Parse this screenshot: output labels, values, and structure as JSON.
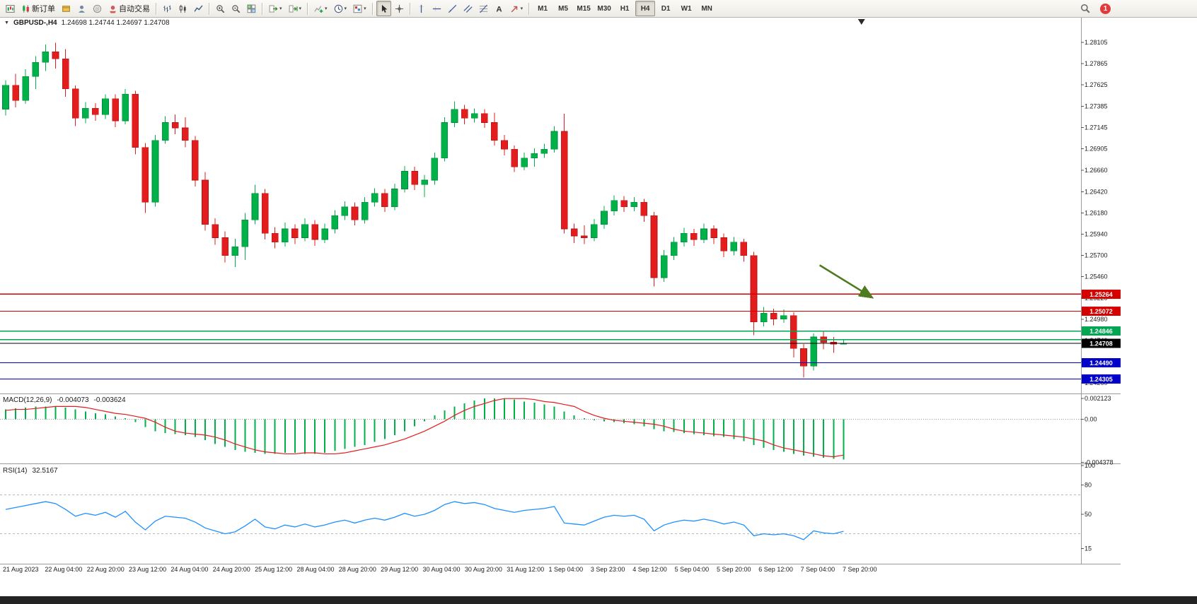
{
  "toolbar": {
    "notification_count": "1",
    "groups": [
      {
        "name": "standard",
        "items": [
          {
            "name": "new-chart-button",
            "icon": "new-chart"
          },
          {
            "name": "new-order-button",
            "icon": "new-order",
            "label": "新订单"
          },
          {
            "name": "metaeditor-button",
            "icon": "metaeditor"
          },
          {
            "name": "mql5-community-button",
            "icon": "community"
          },
          {
            "name": "web-terminal-button",
            "icon": "web"
          },
          {
            "name": "autotrading-button",
            "icon": "autotrading",
            "label": "自动交易"
          }
        ]
      },
      {
        "name": "chart-types",
        "items": [
          {
            "name": "bar-chart-button",
            "icon": "bars"
          },
          {
            "name": "candlestick-chart-button",
            "icon": "candles"
          },
          {
            "name": "line-chart-button",
            "icon": "linechart"
          }
        ]
      },
      {
        "name": "zoom",
        "items": [
          {
            "name": "zoom-in-button",
            "icon": "zoom-in"
          },
          {
            "name": "zoom-out-button",
            "icon": "zoom-out"
          },
          {
            "name": "tile-windows-button",
            "icon": "tile"
          }
        ]
      },
      {
        "name": "scroll",
        "items": [
          {
            "name": "auto-scroll-button",
            "icon": "autoscroll",
            "caret": true
          },
          {
            "name": "chart-shift-button",
            "icon": "shift",
            "caret": true
          }
        ]
      },
      {
        "name": "insert",
        "items": [
          {
            "name": "indicators-button",
            "icon": "indicators",
            "caret": true
          },
          {
            "name": "periods-button",
            "icon": "periods",
            "caret": true
          },
          {
            "name": "templates-button",
            "icon": "templates",
            "caret": true
          }
        ]
      },
      {
        "name": "pointer",
        "items": [
          {
            "name": "cursor-button",
            "icon": "cursor",
            "active": true
          },
          {
            "name": "crosshair-button",
            "icon": "crosshair"
          }
        ]
      },
      {
        "name": "objects",
        "items": [
          {
            "name": "vertical-line-button",
            "icon": "vline"
          },
          {
            "name": "horizontal-line-button",
            "icon": "hline"
          },
          {
            "name": "trendline-button",
            "icon": "tline"
          },
          {
            "name": "equidistant-channel-button",
            "icon": "channel"
          },
          {
            "name": "fibonacci-button",
            "icon": "fibo"
          },
          {
            "name": "text-button",
            "icon": "text"
          },
          {
            "name": "arrows-button",
            "icon": "arrows",
            "caret": true
          }
        ]
      }
    ],
    "timeframes": {
      "items": [
        "M1",
        "M5",
        "M15",
        "M30",
        "H1",
        "H4",
        "D1",
        "W1",
        "MN"
      ],
      "active": "H4"
    }
  },
  "chart": {
    "symbol_period": "GBPUSD-,H4",
    "ohlc_text": "1.24698 1.24744 1.24697 1.24708",
    "dropdown_glyph": "▼",
    "colors": {
      "up": "#00b14a",
      "up_edge": "#008a39",
      "down": "#e31d1d",
      "down_edge": "#b31414",
      "macd": "#00b14a",
      "signal": "#e31d1d",
      "rsi": "#1e90ff",
      "axis_text": "#1a1a1a"
    },
    "price_axis_ticks": [
      "1.28105",
      "1.27865",
      "1.27625",
      "1.27385",
      "1.27145",
      "1.26905",
      "1.26660",
      "1.26420",
      "1.26180",
      "1.25940",
      "1.25700",
      "1.25460",
      "1.25220",
      "1.24980",
      "1.24740",
      "1.24500",
      "1.24260"
    ],
    "levels": [
      {
        "price": 1.25264,
        "label": "1.25264",
        "color": "#d40000",
        "labeled": true
      },
      {
        "price": 1.25072,
        "label": "1.25072",
        "color": "#d40000",
        "labeled": true
      },
      {
        "price": 1.24846,
        "label": "1.24846",
        "color": "#00a651",
        "labeled": true
      },
      {
        "price": 1.2475,
        "label": "",
        "color": "#00a651",
        "labeled": false
      },
      {
        "price": 1.24708,
        "label": "1.24708",
        "color": "#000000",
        "labeled": true,
        "current": true
      },
      {
        "price": 1.2449,
        "label": "1.24490",
        "color": "#0000c8",
        "labeled": true
      },
      {
        "price": 1.24305,
        "label": "1.24305",
        "color": "#0000c8",
        "labeled": true
      }
    ],
    "arrow_annotation": {
      "from_index": 81.6,
      "from_price": 1.2559,
      "to_index": 86.8,
      "to_price": 1.2523,
      "color": "#4e7b20"
    },
    "shift_marker_index": 85.8
  },
  "indicators": {
    "macd": {
      "label": "MACD(12,26,9)",
      "value_main": "-0.004073",
      "value_signal": "-0.003624",
      "axis_ticks": [
        "0.002123",
        "0.00",
        "-0.004378"
      ]
    },
    "rsi": {
      "label": "RSI(14)",
      "value": "32.5167",
      "axis_ticks": [
        "100",
        "80",
        "50",
        "15"
      ],
      "levels": [
        70,
        30
      ]
    }
  },
  "chart_data": {
    "type": "candlestick",
    "title": "GBPUSD- H4",
    "symbol": "GBPUSD-",
    "timeframe": "H4",
    "ylim": [
      1.2415,
      1.2836
    ],
    "macd_ylim": [
      -0.0044,
      0.0024
    ],
    "rsi_ylim": [
      0,
      100
    ],
    "x_labels": [
      "21 Aug 2023",
      "22 Aug 04:00",
      "22 Aug 20:00",
      "23 Aug 12:00",
      "24 Aug 04:00",
      "24 Aug 20:00",
      "25 Aug 12:00",
      "28 Aug 04:00",
      "28 Aug 20:00",
      "29 Aug 12:00",
      "30 Aug 04:00",
      "30 Aug 20:00",
      "31 Aug 12:00",
      "1 Sep 04:00",
      "3 Sep 23:00",
      "4 Sep 12:00",
      "5 Sep 04:00",
      "5 Sep 20:00",
      "6 Sep 12:00",
      "7 Sep 04:00",
      "7 Sep 20:00"
    ],
    "candles": [
      [
        1.2735,
        1.2768,
        1.2728,
        1.2762
      ],
      [
        1.2762,
        1.2775,
        1.2737,
        1.2745
      ],
      [
        1.2745,
        1.278,
        1.2741,
        1.2772
      ],
      [
        1.2772,
        1.2795,
        1.2758,
        1.2788
      ],
      [
        1.2788,
        1.2808,
        1.2778,
        1.28
      ],
      [
        1.28,
        1.281,
        1.2781,
        1.2792
      ],
      [
        1.2792,
        1.2803,
        1.2749,
        1.2758
      ],
      [
        1.2758,
        1.2762,
        1.2716,
        1.2725
      ],
      [
        1.2725,
        1.2743,
        1.2719,
        1.2736
      ],
      [
        1.2736,
        1.2742,
        1.2722,
        1.2729
      ],
      [
        1.2729,
        1.2752,
        1.2724,
        1.2747
      ],
      [
        1.2747,
        1.2752,
        1.2715,
        1.2722
      ],
      [
        1.2722,
        1.2758,
        1.2718,
        1.2752
      ],
      [
        1.2752,
        1.2756,
        1.2684,
        1.2692
      ],
      [
        1.2692,
        1.2697,
        1.2618,
        1.263
      ],
      [
        1.263,
        1.2706,
        1.2625,
        1.27
      ],
      [
        1.27,
        1.2727,
        1.2696,
        1.272
      ],
      [
        1.272,
        1.2729,
        1.2707,
        1.2714
      ],
      [
        1.2714,
        1.2726,
        1.2692,
        1.27
      ],
      [
        1.27,
        1.2705,
        1.2648,
        1.2655
      ],
      [
        1.2655,
        1.2664,
        1.2598,
        1.2605
      ],
      [
        1.2605,
        1.2612,
        1.2582,
        1.259
      ],
      [
        1.259,
        1.2597,
        1.2562,
        1.257
      ],
      [
        1.257,
        1.2589,
        1.2557,
        1.258
      ],
      [
        1.258,
        1.2618,
        1.2565,
        1.261
      ],
      [
        1.261,
        1.265,
        1.2605,
        1.264
      ],
      [
        1.264,
        1.2645,
        1.2588,
        1.2595
      ],
      [
        1.2595,
        1.2602,
        1.2578,
        1.2585
      ],
      [
        1.2585,
        1.2607,
        1.258,
        1.26
      ],
      [
        1.26,
        1.2605,
        1.2583,
        1.259
      ],
      [
        1.259,
        1.2612,
        1.2586,
        1.2605
      ],
      [
        1.2605,
        1.261,
        1.2581,
        1.2588
      ],
      [
        1.2588,
        1.2606,
        1.2584,
        1.26
      ],
      [
        1.26,
        1.2621,
        1.2595,
        1.2615
      ],
      [
        1.2615,
        1.2631,
        1.261,
        1.2625
      ],
      [
        1.2625,
        1.263,
        1.2604,
        1.261
      ],
      [
        1.261,
        1.2636,
        1.2606,
        1.263
      ],
      [
        1.263,
        1.2646,
        1.2625,
        1.264
      ],
      [
        1.264,
        1.2645,
        1.2619,
        1.2625
      ],
      [
        1.2625,
        1.2651,
        1.2621,
        1.2645
      ],
      [
        1.2645,
        1.2671,
        1.2641,
        1.2665
      ],
      [
        1.2665,
        1.267,
        1.2644,
        1.265
      ],
      [
        1.265,
        1.2661,
        1.2636,
        1.2655
      ],
      [
        1.2655,
        1.2686,
        1.265,
        1.268
      ],
      [
        1.268,
        1.2726,
        1.2676,
        1.272
      ],
      [
        1.272,
        1.2744,
        1.2715,
        1.2735
      ],
      [
        1.2735,
        1.274,
        1.2718,
        1.2725
      ],
      [
        1.2725,
        1.2736,
        1.272,
        1.273
      ],
      [
        1.273,
        1.2735,
        1.2714,
        1.272
      ],
      [
        1.272,
        1.2731,
        1.2694,
        1.27
      ],
      [
        1.27,
        1.2706,
        1.2683,
        1.269
      ],
      [
        1.269,
        1.2694,
        1.2664,
        1.267
      ],
      [
        1.267,
        1.2686,
        1.2666,
        1.268
      ],
      [
        1.268,
        1.2691,
        1.267,
        1.2685
      ],
      [
        1.2685,
        1.2696,
        1.268,
        1.269
      ],
      [
        1.269,
        1.2716,
        1.2686,
        1.271
      ],
      [
        1.271,
        1.273,
        1.2595,
        1.26
      ],
      [
        1.26,
        1.2606,
        1.2584,
        1.2592
      ],
      [
        1.2592,
        1.2604,
        1.2583,
        1.259
      ],
      [
        1.259,
        1.2611,
        1.2586,
        1.2605
      ],
      [
        1.2605,
        1.2626,
        1.26,
        1.262
      ],
      [
        1.262,
        1.2638,
        1.2615,
        1.2632
      ],
      [
        1.2632,
        1.2637,
        1.2619,
        1.2625
      ],
      [
        1.2625,
        1.2636,
        1.262,
        1.263
      ],
      [
        1.263,
        1.2634,
        1.2608,
        1.2615
      ],
      [
        1.2615,
        1.2619,
        1.2535,
        1.2545
      ],
      [
        1.2545,
        1.2576,
        1.254,
        1.257
      ],
      [
        1.257,
        1.2591,
        1.2565,
        1.2585
      ],
      [
        1.2585,
        1.2601,
        1.258,
        1.2595
      ],
      [
        1.2595,
        1.26,
        1.2581,
        1.2588
      ],
      [
        1.2588,
        1.2606,
        1.2584,
        1.26
      ],
      [
        1.26,
        1.2604,
        1.2583,
        1.259
      ],
      [
        1.259,
        1.2595,
        1.2568,
        1.2575
      ],
      [
        1.2575,
        1.2591,
        1.257,
        1.2585
      ],
      [
        1.2585,
        1.2589,
        1.2563,
        1.257
      ],
      [
        1.257,
        1.2574,
        1.248,
        1.2495
      ],
      [
        1.2495,
        1.2512,
        1.249,
        1.2505
      ],
      [
        1.2505,
        1.251,
        1.2491,
        1.2498
      ],
      [
        1.2498,
        1.2509,
        1.2494,
        1.2502
      ],
      [
        1.2502,
        1.2506,
        1.2455,
        1.2465
      ],
      [
        1.2465,
        1.247,
        1.2432,
        1.2445
      ],
      [
        1.2445,
        1.2482,
        1.244,
        1.2478
      ],
      [
        1.2478,
        1.2484,
        1.2464,
        1.2472
      ],
      [
        1.2472,
        1.2478,
        1.246,
        1.24698
      ],
      [
        1.24698,
        1.24744,
        1.24697,
        1.24708
      ]
    ],
    "series": [
      {
        "name": "MACD histogram",
        "values": [
          0.001,
          0.0011,
          0.0012,
          0.0013,
          0.0013,
          0.0013,
          0.0012,
          0.001,
          0.0008,
          0.0006,
          0.0005,
          0.0003,
          0.0001,
          -0.0003,
          -0.0008,
          -0.0012,
          -0.0014,
          -0.0015,
          -0.0016,
          -0.0018,
          -0.0021,
          -0.0025,
          -0.0028,
          -0.0031,
          -0.0033,
          -0.0034,
          -0.0035,
          -0.0035,
          -0.0034,
          -0.0034,
          -0.0035,
          -0.0035,
          -0.0034,
          -0.0032,
          -0.003,
          -0.0028,
          -0.0026,
          -0.0023,
          -0.002,
          -0.0016,
          -0.0012,
          -0.0007,
          -0.0002,
          0.0004,
          0.0009,
          0.0013,
          0.0016,
          0.0019,
          0.0021,
          0.0021,
          0.0021,
          0.002,
          0.0018,
          0.0017,
          0.0015,
          0.0013,
          0.0008,
          0.0004,
          0.0001,
          -0.0001,
          -0.0002,
          -0.0003,
          -0.0004,
          -0.0005,
          -0.0007,
          -0.001,
          -0.0012,
          -0.0013,
          -0.0014,
          -0.0015,
          -0.0016,
          -0.0017,
          -0.0018,
          -0.002,
          -0.0022,
          -0.0026,
          -0.0029,
          -0.0031,
          -0.0033,
          -0.0035,
          -0.0037,
          -0.0038,
          -0.0039,
          -0.004,
          -0.004073
        ]
      },
      {
        "name": "MACD signal",
        "values": [
          0.0009,
          0.001,
          0.001,
          0.0011,
          0.0012,
          0.0013,
          0.0013,
          0.0013,
          0.0012,
          0.001,
          0.0008,
          0.0006,
          0.0005,
          0.0003,
          0.0001,
          -0.0003,
          -0.0008,
          -0.0012,
          -0.0014,
          -0.0015,
          -0.0016,
          -0.0018,
          -0.0021,
          -0.0025,
          -0.0028,
          -0.0031,
          -0.0033,
          -0.0034,
          -0.0035,
          -0.0035,
          -0.0034,
          -0.0034,
          -0.0035,
          -0.0035,
          -0.0034,
          -0.0032,
          -0.003,
          -0.0028,
          -0.0026,
          -0.0023,
          -0.002,
          -0.0016,
          -0.0012,
          -0.0007,
          -0.0002,
          0.0004,
          0.0009,
          0.0013,
          0.0016,
          0.0019,
          0.0021,
          0.0021,
          0.0021,
          0.002,
          0.0018,
          0.0017,
          0.0015,
          0.0013,
          0.0008,
          0.0004,
          0.0001,
          -0.0001,
          -0.0002,
          -0.0003,
          -0.0004,
          -0.0005,
          -0.0007,
          -0.001,
          -0.0012,
          -0.0013,
          -0.0014,
          -0.0015,
          -0.0016,
          -0.0017,
          -0.0018,
          -0.002,
          -0.0022,
          -0.0026,
          -0.0029,
          -0.0031,
          -0.0033,
          -0.0035,
          -0.0037,
          -0.0038,
          -0.003624
        ]
      },
      {
        "name": "RSI(14)",
        "values": [
          55,
          57,
          59,
          61,
          63,
          61,
          55,
          48,
          51,
          49,
          52,
          47,
          53,
          42,
          34,
          43,
          48,
          47,
          46,
          42,
          36,
          33,
          30,
          32,
          38,
          45,
          37,
          35,
          39,
          37,
          40,
          37,
          39,
          42,
          44,
          41,
          44,
          46,
          44,
          47,
          51,
          48,
          50,
          54,
          60,
          63,
          61,
          62,
          60,
          56,
          54,
          52,
          54,
          55,
          56,
          58,
          41,
          40,
          39,
          43,
          47,
          49,
          48,
          49,
          45,
          33,
          39,
          42,
          44,
          43,
          45,
          43,
          40,
          42,
          39,
          28,
          30,
          29,
          30,
          28,
          24,
          33,
          31,
          30,
          32.5167
        ]
      }
    ]
  }
}
